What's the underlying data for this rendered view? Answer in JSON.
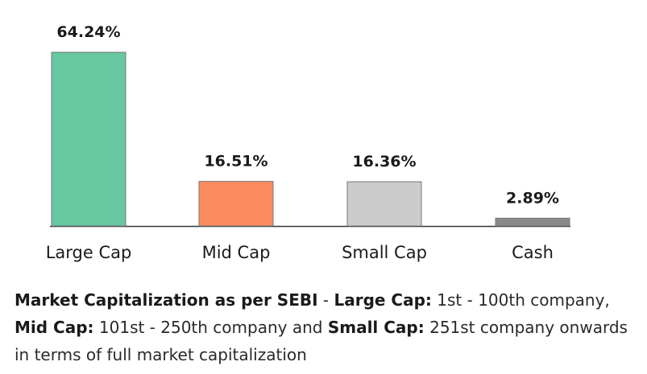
{
  "chart_data": {
    "type": "bar",
    "categories": [
      "Large Cap",
      "Mid Cap",
      "Small Cap",
      "Cash"
    ],
    "values": [
      64.24,
      16.51,
      16.36,
      2.89
    ],
    "value_labels": [
      "64.24%",
      "16.51%",
      "16.36%",
      "2.89%"
    ],
    "colors": [
      "#66c7a0",
      "#fc8c60",
      "#cccccc",
      "#8a8a8a"
    ],
    "ylim": [
      0,
      64.24
    ],
    "grid": false,
    "title": "",
    "xlabel": "",
    "ylabel": ""
  },
  "footnote": {
    "part1_bold": "Market Capitalization as per SEBI",
    "part2": " - ",
    "part3_bold": "Large Cap:",
    "part4": " 1st - 100th company, ",
    "part5_bold": "Mid Cap:",
    "part6": " 101st - 250th company and ",
    "part7_bold": "Small Cap:",
    "part8": " 251st company onwards in terms of full market capitalization"
  }
}
